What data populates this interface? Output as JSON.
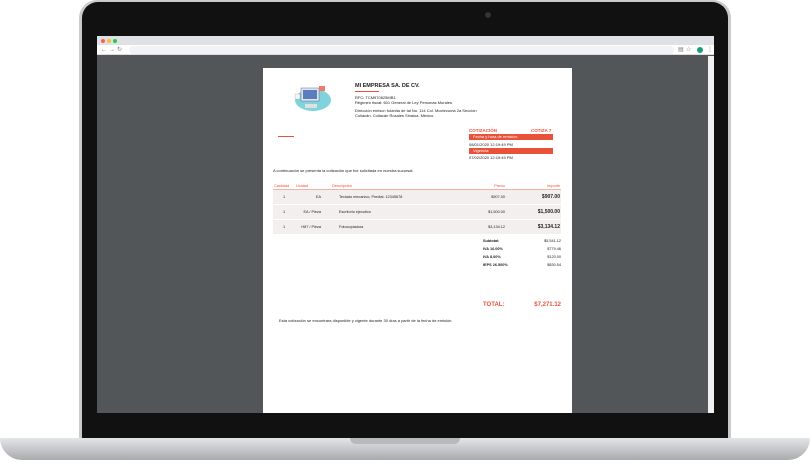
{
  "browser": {
    "nav": {
      "back": "←",
      "forward": "→",
      "reload": "↻"
    },
    "menu": "⋮",
    "accent": "#1a9c83"
  },
  "company": {
    "name": "MI EMPRESA SA. DE CV.",
    "rfc": "RFC: TCM970625MB1",
    "regimen": "Régimen fiscal: 601 General de Ley Personas Morales",
    "direccion_1": "Dirección emisor: fulanita de tal No. 114 Col. Moctezuma 2a Sección",
    "direccion_2": "Culiacán, Culiacán Rosales Sinaloa, México."
  },
  "quote": {
    "label": "COTIZACIÓN",
    "number": "COTIZA 7",
    "emision_label": "Fecha y hora de emisión:",
    "emision": "08/01/2020 12:19:49 PM",
    "vigencia_label": "Vigencia:",
    "vigencia": "07/02/2020 12:19:49 PM",
    "intro": "A continuación se presenta la cotización que fue solicitada en nuestra sucursal.",
    "footer": "Esta cotización se encontrara disponible y vigente durante 30 días a partir de la fecha de emisión."
  },
  "table": {
    "headers": [
      "Cantidad",
      "Unidad",
      "Descripción",
      "Precio",
      "Importe"
    ],
    "rows": [
      [
        "1",
        "EA",
        "Teclado mecanico, Predial: 12345678",
        "$907.00",
        "$907.00"
      ],
      [
        "1",
        "EA / Pieza",
        "Escritorio ejecutivo",
        "$1,500.00",
        "$1,500.00"
      ],
      [
        "1",
        "H87 / Pieza",
        "Fotocopiadora",
        "$3,134.12",
        "$3,134.12"
      ]
    ]
  },
  "totals": [
    {
      "label": "Subtotal:",
      "value": "$5,541.12"
    },
    {
      "label": "IVA 16.00%",
      "value": "$779.46"
    },
    {
      "label": "IVA 8.00%",
      "value": "$120.00"
    },
    {
      "label": "IEPS 26.500%",
      "value": "$830.54"
    }
  ],
  "total": {
    "label": "TOTAL:",
    "value": "$7,271.12"
  },
  "colors": {
    "accent": "#e8513a",
    "viewer_bg": "#525659"
  }
}
